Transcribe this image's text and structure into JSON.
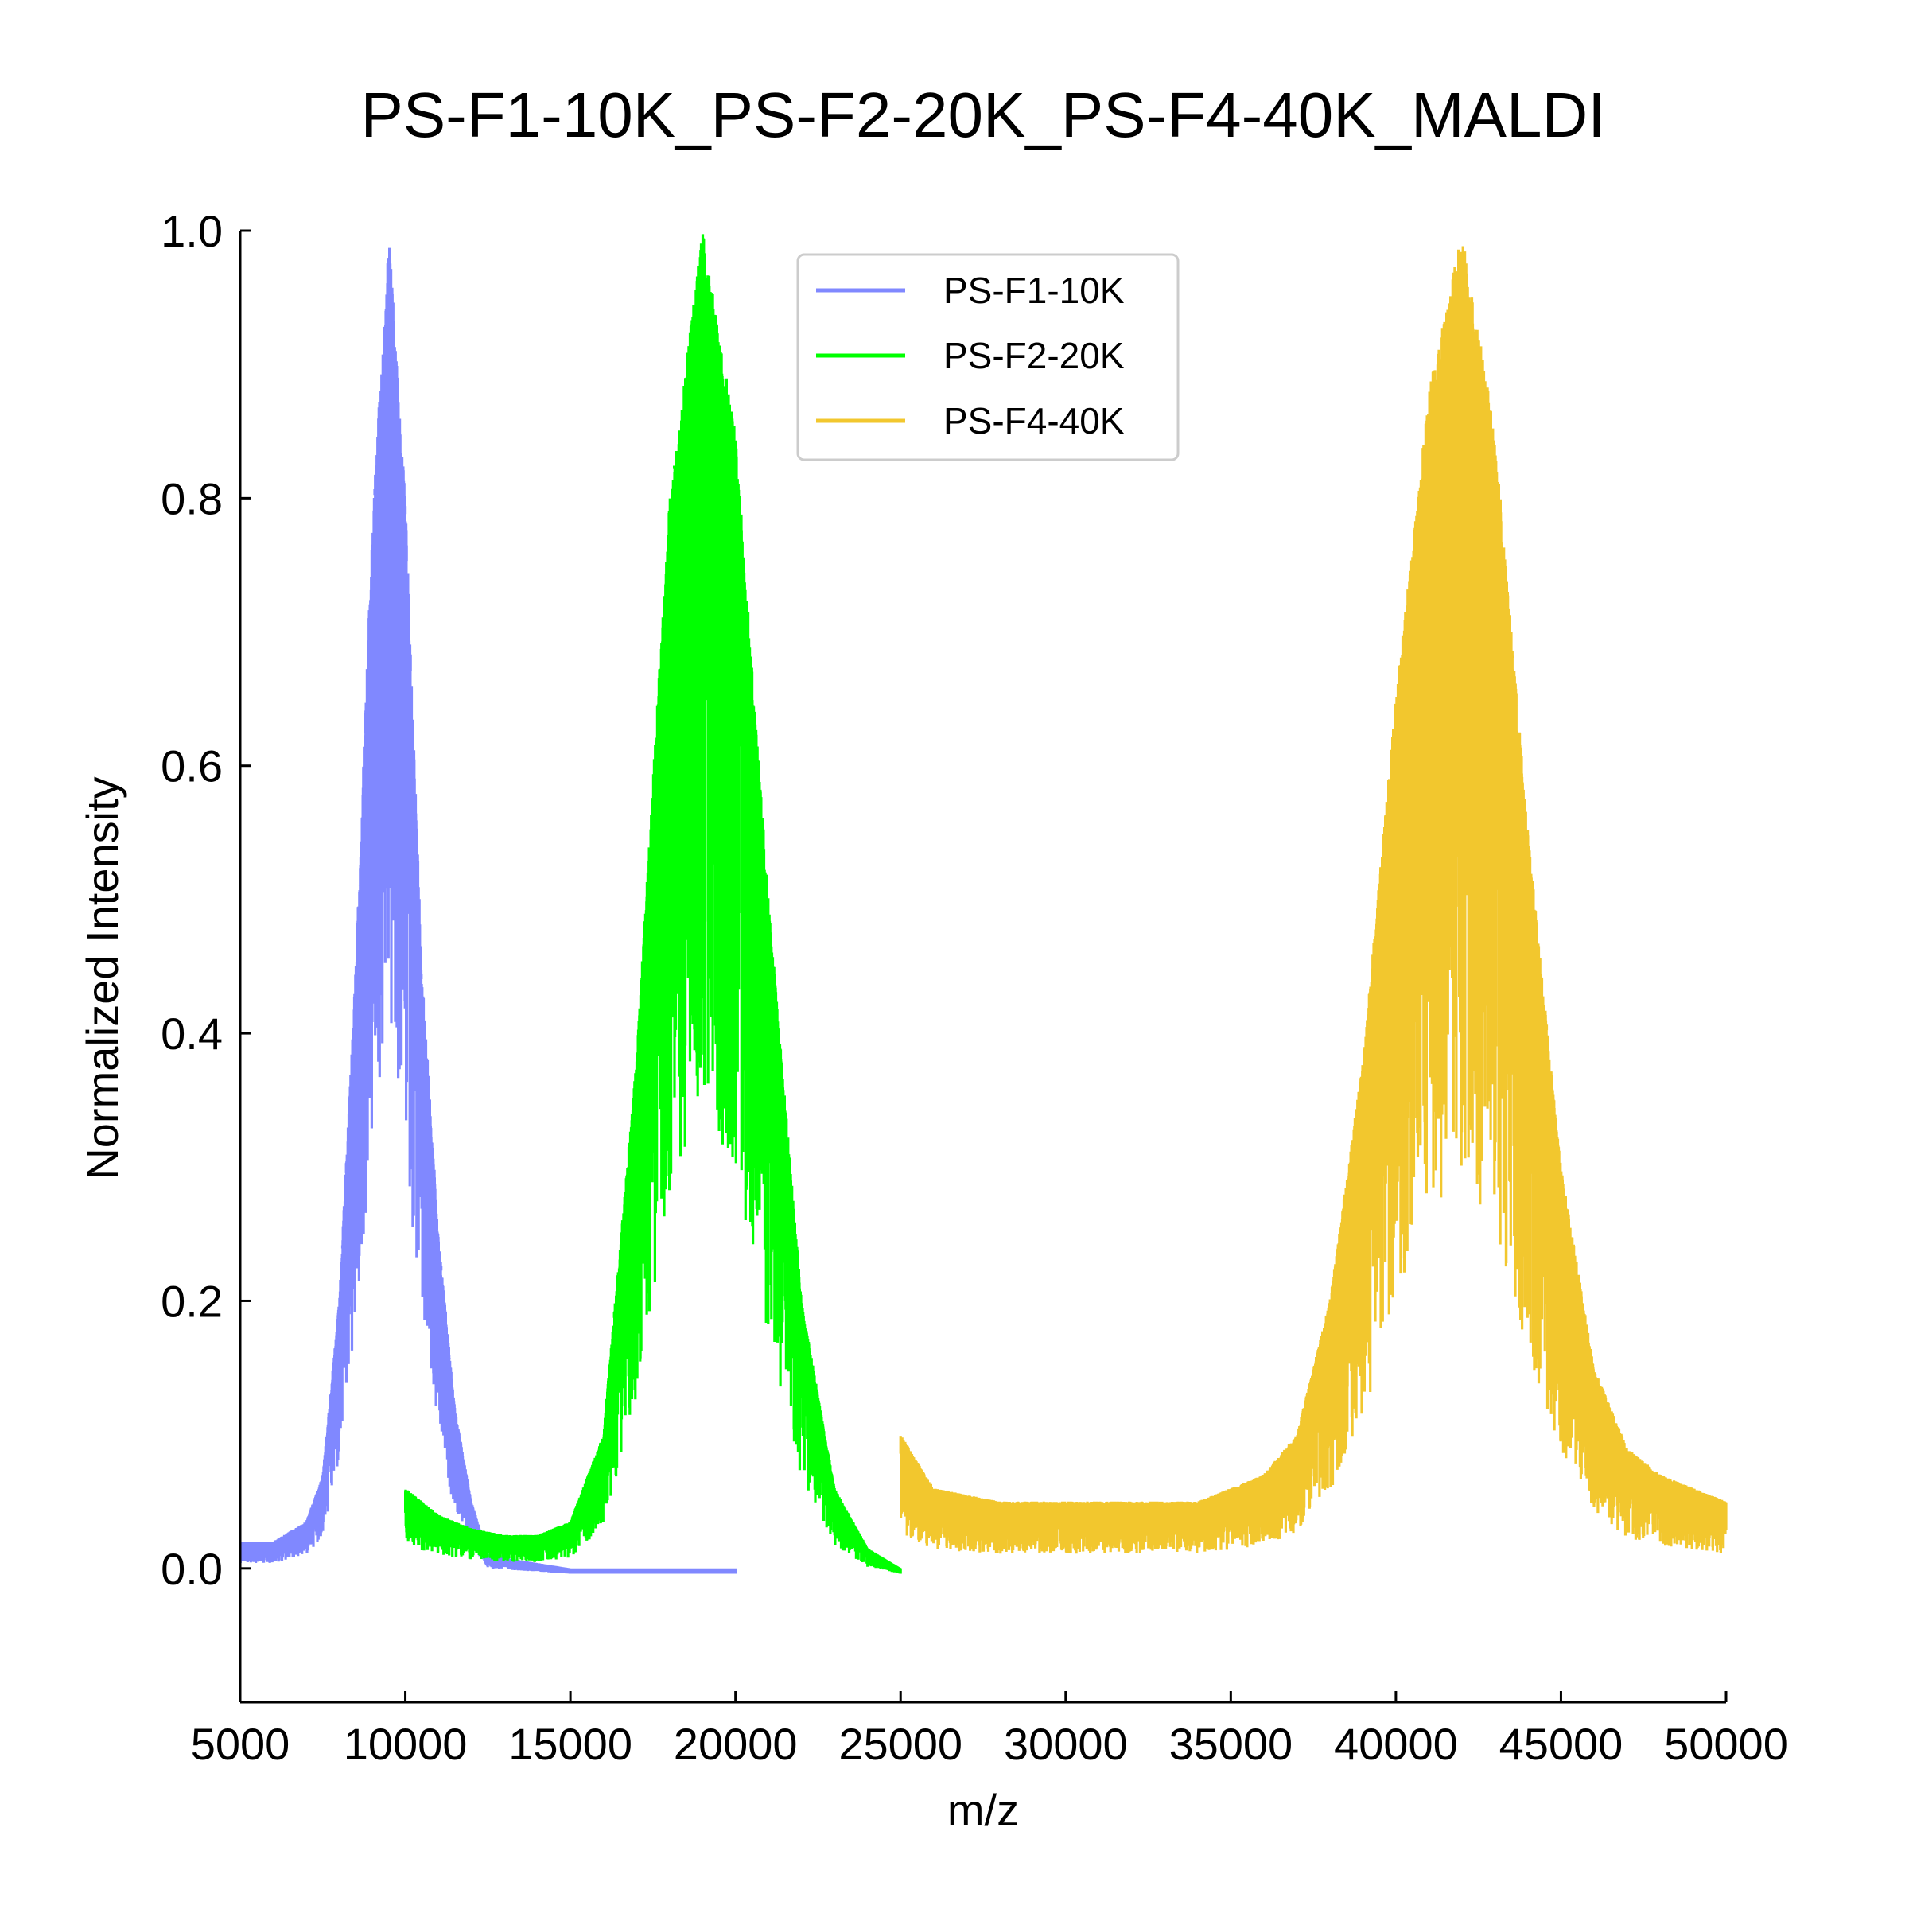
{
  "chart_data": {
    "type": "line",
    "title": "PS-F1-10K_PS-F2-20K_PS-F4-40K_MALDI",
    "xlabel": "m/z",
    "ylabel": "Normalized Intensity",
    "xlim": [
      5000,
      50000
    ],
    "ylim": [
      -0.1,
      1.0
    ],
    "xticks": [
      5000,
      10000,
      15000,
      20000,
      25000,
      30000,
      35000,
      40000,
      45000,
      50000
    ],
    "yticks": [
      0.0,
      0.2,
      0.4,
      0.6,
      0.8,
      1.0
    ],
    "grid": false,
    "legend_position": "top-center",
    "series": [
      {
        "name": "PS-F1-10K",
        "color": "#8088ff",
        "x_range": [
          5000,
          20000
        ],
        "center": 9500,
        "sigma": 1200,
        "baseline": 0.015,
        "noise": 0.6,
        "points": [
          [
            5000,
            0.02
          ],
          [
            6000,
            0.02
          ],
          [
            7000,
            0.035
          ],
          [
            7500,
            0.07
          ],
          [
            8000,
            0.2
          ],
          [
            8500,
            0.45
          ],
          [
            9000,
            0.78
          ],
          [
            9500,
            1.0
          ],
          [
            10000,
            0.8
          ],
          [
            10500,
            0.45
          ],
          [
            11000,
            0.25
          ],
          [
            11500,
            0.12
          ],
          [
            12000,
            0.05
          ],
          [
            12500,
            0.01
          ],
          [
            15000,
            0.0
          ],
          [
            20000,
            0.0
          ]
        ]
      },
      {
        "name": "PS-F2-20K",
        "color": "#00ff00",
        "x_range": [
          10000,
          25000
        ],
        "center": 19100,
        "sigma": 2000,
        "baseline": 0.025,
        "noise": 0.65,
        "points": [
          [
            10000,
            0.06
          ],
          [
            11000,
            0.04
          ],
          [
            12000,
            0.03
          ],
          [
            13000,
            0.025
          ],
          [
            14000,
            0.025
          ],
          [
            15000,
            0.035
          ],
          [
            16000,
            0.1
          ],
          [
            17000,
            0.38
          ],
          [
            18000,
            0.8
          ],
          [
            19000,
            1.0
          ],
          [
            20000,
            0.85
          ],
          [
            21000,
            0.5
          ],
          [
            22000,
            0.2
          ],
          [
            23000,
            0.06
          ],
          [
            24000,
            0.015
          ],
          [
            25000,
            0.0
          ]
        ]
      },
      {
        "name": "PS-F4-40K",
        "color": "#f2c72e",
        "x_range": [
          25000,
          50000
        ],
        "center": 41800,
        "sigma": 2900,
        "baseline": 0.04,
        "noise": 0.7,
        "points": [
          [
            25000,
            0.1
          ],
          [
            26000,
            0.06
          ],
          [
            28000,
            0.05
          ],
          [
            30000,
            0.05
          ],
          [
            32000,
            0.05
          ],
          [
            34000,
            0.05
          ],
          [
            36000,
            0.07
          ],
          [
            37000,
            0.1
          ],
          [
            38000,
            0.2
          ],
          [
            39000,
            0.38
          ],
          [
            40000,
            0.65
          ],
          [
            41000,
            0.88
          ],
          [
            42000,
            1.0
          ],
          [
            43000,
            0.85
          ],
          [
            44000,
            0.55
          ],
          [
            45000,
            0.3
          ],
          [
            46000,
            0.15
          ],
          [
            47000,
            0.09
          ],
          [
            48000,
            0.07
          ],
          [
            49000,
            0.06
          ],
          [
            50000,
            0.05
          ]
        ]
      }
    ]
  }
}
